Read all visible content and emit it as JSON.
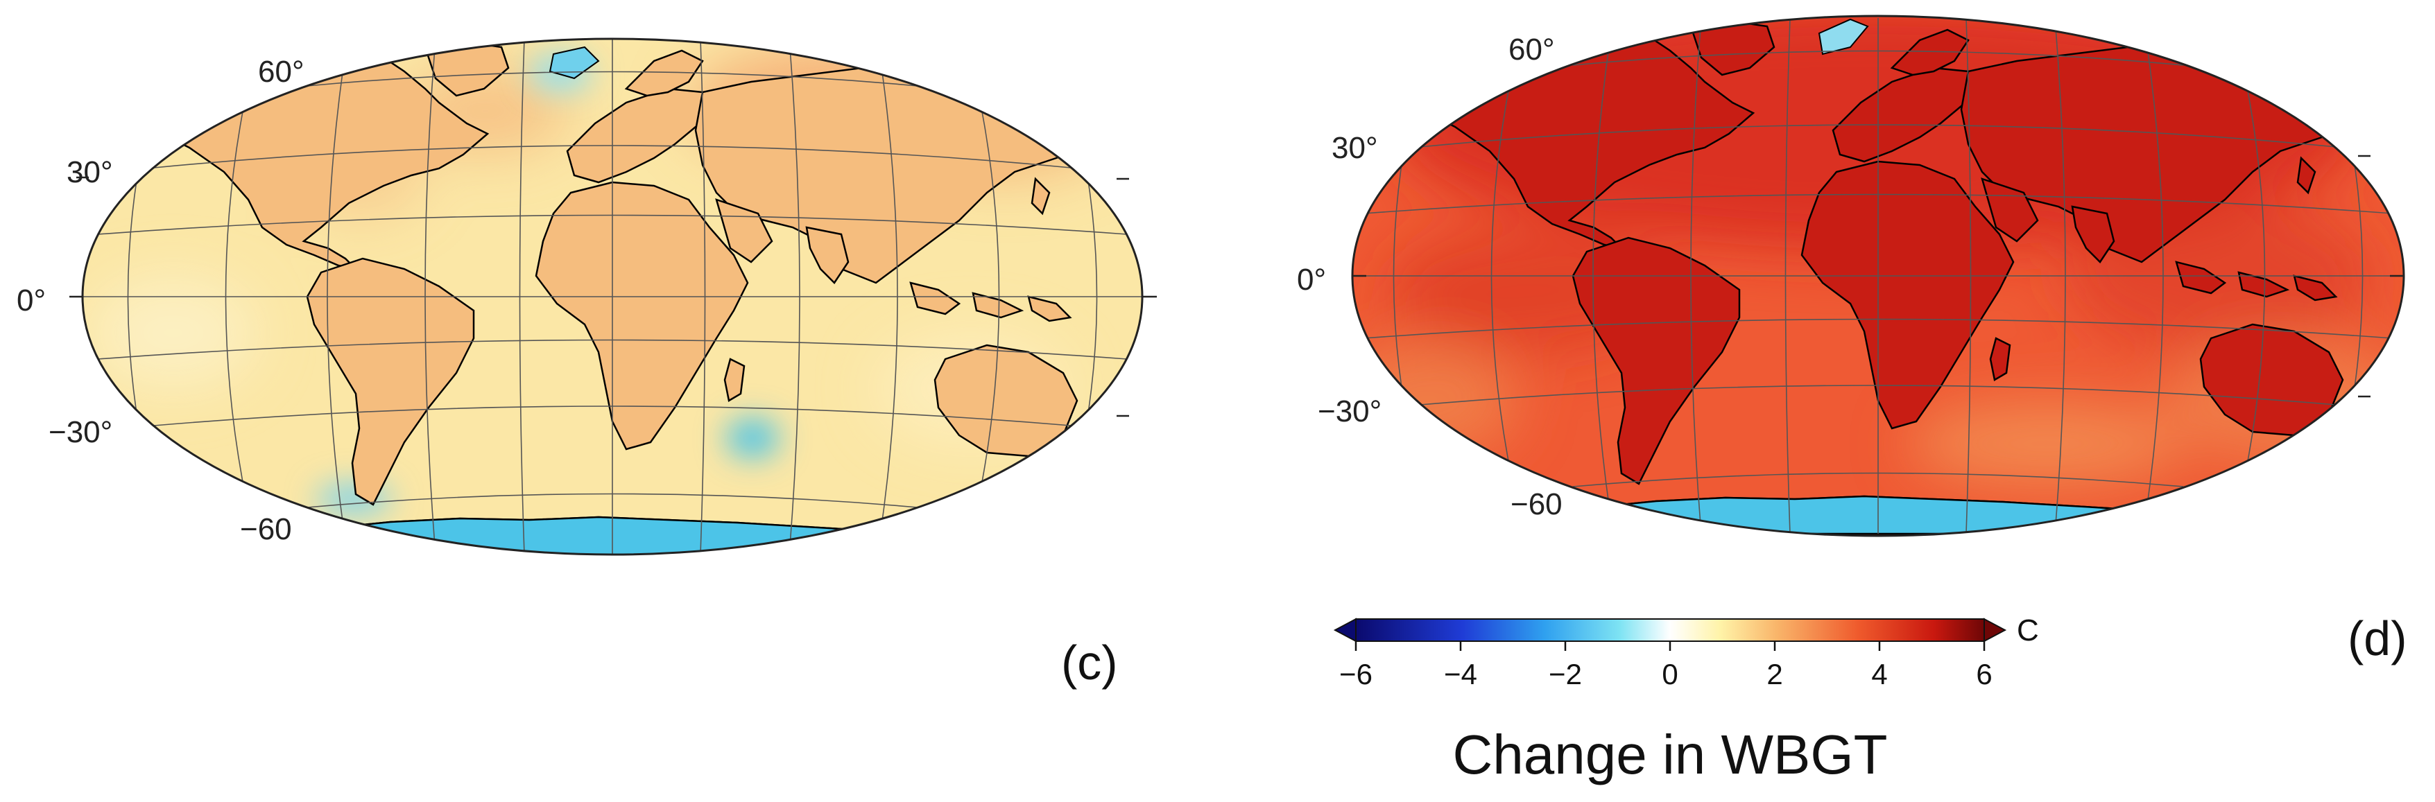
{
  "panels": [
    {
      "label": "(c)",
      "lat_labels": [
        "60°",
        "30°",
        "0°",
        "−30°",
        "−60"
      ],
      "scheme": "mild"
    },
    {
      "label": "(d)",
      "lat_labels": [
        "60°",
        "30°",
        "0°",
        "−30°",
        "−60"
      ],
      "scheme": "hot"
    }
  ],
  "colorbar": {
    "title": "Change in WBGT",
    "unit": "C",
    "ticks": [
      "−6",
      "−4",
      "−2",
      "0",
      "2",
      "4",
      "6"
    ],
    "tick_values": [
      -6,
      -4,
      -2,
      0,
      2,
      4,
      6
    ],
    "range": [
      -6,
      6
    ],
    "colors": [
      "#0a0a6e",
      "#1f3cd6",
      "#2fa0ef",
      "#7ee3f3",
      "#ffffff",
      "#fff3a8",
      "#f9b56a",
      "#ef5a2c",
      "#c9180f",
      "#6e0606"
    ]
  },
  "colors": {
    "ocean_mild": "#fbe7a6",
    "land_mild": "#f6bf7c",
    "ocean_hot": "#ef5a34",
    "land_hot": "#d8281d",
    "antarctica": "#4cc4e8",
    "coast": "#000000"
  }
}
